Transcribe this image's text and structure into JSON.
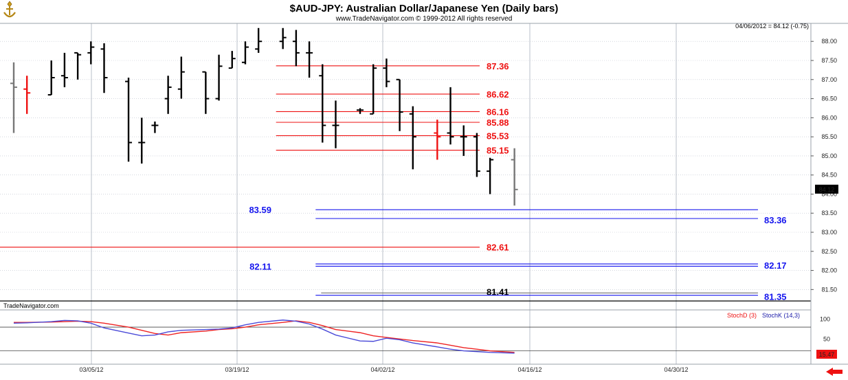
{
  "header": {
    "title": "$AUD-JPY:  Australian Dollar/Japanese Yen  (Daily bars)",
    "copyright": "www.TradeNavigator.com © 1999-2012 All rights reserved",
    "quote": "04/06/2012 = 84.12 (-0.75)",
    "watermark": "TradeNavigator.com",
    "logo_icon": "trade-navigator-logo-icon"
  },
  "colors": {
    "red": "#ee1111",
    "blue": "#1515ee",
    "bar": "#000000",
    "grid": "#b9bfca",
    "stoch_d": "#ee2222",
    "stoch_k": "#4a4ad8",
    "last_price_bg": "#000000",
    "stoch_badge_bg": "#ee1111"
  },
  "chart_data": [
    {
      "type": "ohlc",
      "title": "$AUD-JPY:  Australian Dollar/Japanese Yen  (Daily bars)",
      "x_ticks": [
        "03/05/12",
        "03/19/12",
        "04/02/12",
        "04/16/12",
        "04/30/12"
      ],
      "y_ticks": [
        "88.00",
        "87.50",
        "87.00",
        "86.50",
        "86.00",
        "85.50",
        "85.00",
        "84.50",
        "84.00",
        "83.50",
        "83.00",
        "82.50",
        "82.00",
        "81.50"
      ],
      "ylim": [
        81.2,
        88.4
      ],
      "grid": true,
      "last_price": "84.12",
      "bars": [
        {
          "o": 86.9,
          "h": 87.45,
          "l": 85.6,
          "c": 86.8,
          "color": "gray"
        },
        {
          "o": 86.75,
          "h": 87.1,
          "l": 86.1,
          "c": 86.65,
          "color": "red"
        },
        {
          "o": 86.6,
          "h": 87.5,
          "l": 86.6,
          "c": 87.05,
          "color": "black"
        },
        {
          "o": 87.1,
          "h": 87.7,
          "l": 86.8,
          "c": 87.05,
          "color": "black"
        },
        {
          "o": 87.7,
          "h": 87.7,
          "l": 87.0,
          "c": 87.65,
          "color": "black"
        },
        {
          "o": 87.7,
          "h": 88.0,
          "l": 87.4,
          "c": 87.85,
          "color": "black"
        },
        {
          "o": 87.8,
          "h": 87.95,
          "l": 86.65,
          "c": 87.05,
          "color": "black"
        },
        {
          "o": 86.95,
          "h": 87.05,
          "l": 84.85,
          "c": 85.35,
          "color": "black"
        },
        {
          "o": 85.35,
          "h": 86.0,
          "l": 84.8,
          "c": 85.35,
          "color": "black"
        },
        {
          "o": 85.8,
          "h": 85.9,
          "l": 85.6,
          "c": 85.8,
          "color": "black"
        },
        {
          "o": 86.5,
          "h": 87.1,
          "l": 86.1,
          "c": 86.8,
          "color": "black"
        },
        {
          "o": 86.75,
          "h": 87.6,
          "l": 86.5,
          "c": 87.2,
          "color": "black"
        },
        {
          "o": 87.2,
          "h": 87.2,
          "l": 86.1,
          "c": 86.5,
          "color": "black"
        },
        {
          "o": 86.5,
          "h": 87.65,
          "l": 86.45,
          "c": 87.35,
          "color": "black"
        },
        {
          "o": 87.3,
          "h": 87.75,
          "l": 87.3,
          "c": 87.55,
          "color": "black"
        },
        {
          "o": 87.45,
          "h": 88.0,
          "l": 87.4,
          "c": 87.85,
          "color": "black"
        },
        {
          "o": 87.8,
          "h": 88.35,
          "l": 87.7,
          "c": 88.0,
          "color": "black"
        },
        {
          "o": 88.0,
          "h": 88.35,
          "l": 87.8,
          "c": 88.1,
          "color": "black"
        },
        {
          "o": 88.0,
          "h": 88.3,
          "l": 87.35,
          "c": 87.7,
          "color": "black"
        },
        {
          "o": 87.7,
          "h": 88.0,
          "l": 87.05,
          "c": 87.7,
          "color": "black"
        },
        {
          "o": 87.1,
          "h": 87.4,
          "l": 85.35,
          "c": 85.8,
          "color": "black"
        },
        {
          "o": 85.8,
          "h": 86.45,
          "l": 85.2,
          "c": 85.8,
          "color": "black"
        },
        {
          "o": 86.2,
          "h": 86.25,
          "l": 86.1,
          "c": 86.2,
          "color": "black"
        },
        {
          "o": 86.1,
          "h": 87.4,
          "l": 86.1,
          "c": 87.3,
          "color": "black"
        },
        {
          "o": 87.3,
          "h": 87.55,
          "l": 86.8,
          "c": 86.95,
          "color": "black"
        },
        {
          "o": 87.0,
          "h": 87.0,
          "l": 85.65,
          "c": 86.15,
          "color": "black"
        },
        {
          "o": 86.1,
          "h": 86.3,
          "l": 84.65,
          "c": 85.5,
          "color": "black"
        },
        {
          "o": 85.6,
          "h": 85.95,
          "l": 84.9,
          "c": 85.5,
          "color": "red"
        },
        {
          "o": 85.6,
          "h": 86.8,
          "l": 85.3,
          "c": 85.5,
          "color": "black"
        },
        {
          "o": 85.5,
          "h": 85.8,
          "l": 85.0,
          "c": 85.5,
          "color": "black"
        },
        {
          "o": 85.5,
          "h": 85.6,
          "l": 84.45,
          "c": 84.6,
          "color": "black"
        },
        {
          "o": 84.6,
          "h": 84.95,
          "l": 84.0,
          "c": 84.9,
          "color": "black"
        },
        {
          "o": 84.9,
          "h": 85.2,
          "l": 83.7,
          "c": 84.12,
          "color": "gray"
        }
      ],
      "levels": [
        {
          "value": 87.36,
          "label": "87.36",
          "color": "red",
          "from_bar": 17
        },
        {
          "value": 86.62,
          "label": "86.62",
          "color": "red",
          "from_bar": 17
        },
        {
          "value": 86.16,
          "label": "86.16",
          "color": "red",
          "from_bar": 17
        },
        {
          "value": 85.88,
          "label": "85.88",
          "color": "red",
          "from_bar": 17
        },
        {
          "value": 85.53,
          "label": "85.53",
          "color": "red",
          "from_bar": 17
        },
        {
          "value": 85.15,
          "label": "85.15",
          "color": "red",
          "from_bar": 17
        },
        {
          "value": 82.61,
          "label": "82.61",
          "color": "red",
          "from_bar": -1
        },
        {
          "value": 83.59,
          "label": "83.59",
          "color": "blue",
          "from_bar": 20
        },
        {
          "value": 83.36,
          "label": "83.36",
          "color": "blue",
          "from_bar": 20
        },
        {
          "value": 82.17,
          "label": "82.17",
          "color": "blue",
          "from_bar": 20
        },
        {
          "value": 82.11,
          "label": "82.11",
          "color": "blue",
          "from_bar": 20
        },
        {
          "value": 81.41,
          "label": "81.41",
          "color": "black",
          "from_bar": 20
        },
        {
          "value": 81.35,
          "label": "81.35",
          "color": "blue",
          "from_bar": 20
        }
      ]
    },
    {
      "type": "line",
      "title": "",
      "y_ticks": [
        "100",
        "50"
      ],
      "ylim": [
        0,
        115
      ],
      "badge": "15.47",
      "series": [
        {
          "name": "StochD (3)",
          "color": "red",
          "values": [
            92,
            92,
            93,
            94,
            95,
            94,
            90,
            80,
            72,
            64,
            60,
            66,
            70,
            74,
            76,
            80,
            86,
            92,
            96,
            92,
            84,
            74,
            66,
            58,
            54,
            50,
            46,
            40,
            34,
            28,
            24,
            20,
            16
          ]
        },
        {
          "name": "StochK (14,3)",
          "color": "blue",
          "values": [
            90,
            91,
            94,
            97,
            96,
            90,
            78,
            65,
            58,
            60,
            68,
            72,
            74,
            75,
            78,
            86,
            92,
            98,
            95,
            88,
            75,
            60,
            45,
            44,
            52,
            48,
            40,
            30,
            24,
            20,
            18,
            16,
            14
          ]
        }
      ]
    }
  ]
}
